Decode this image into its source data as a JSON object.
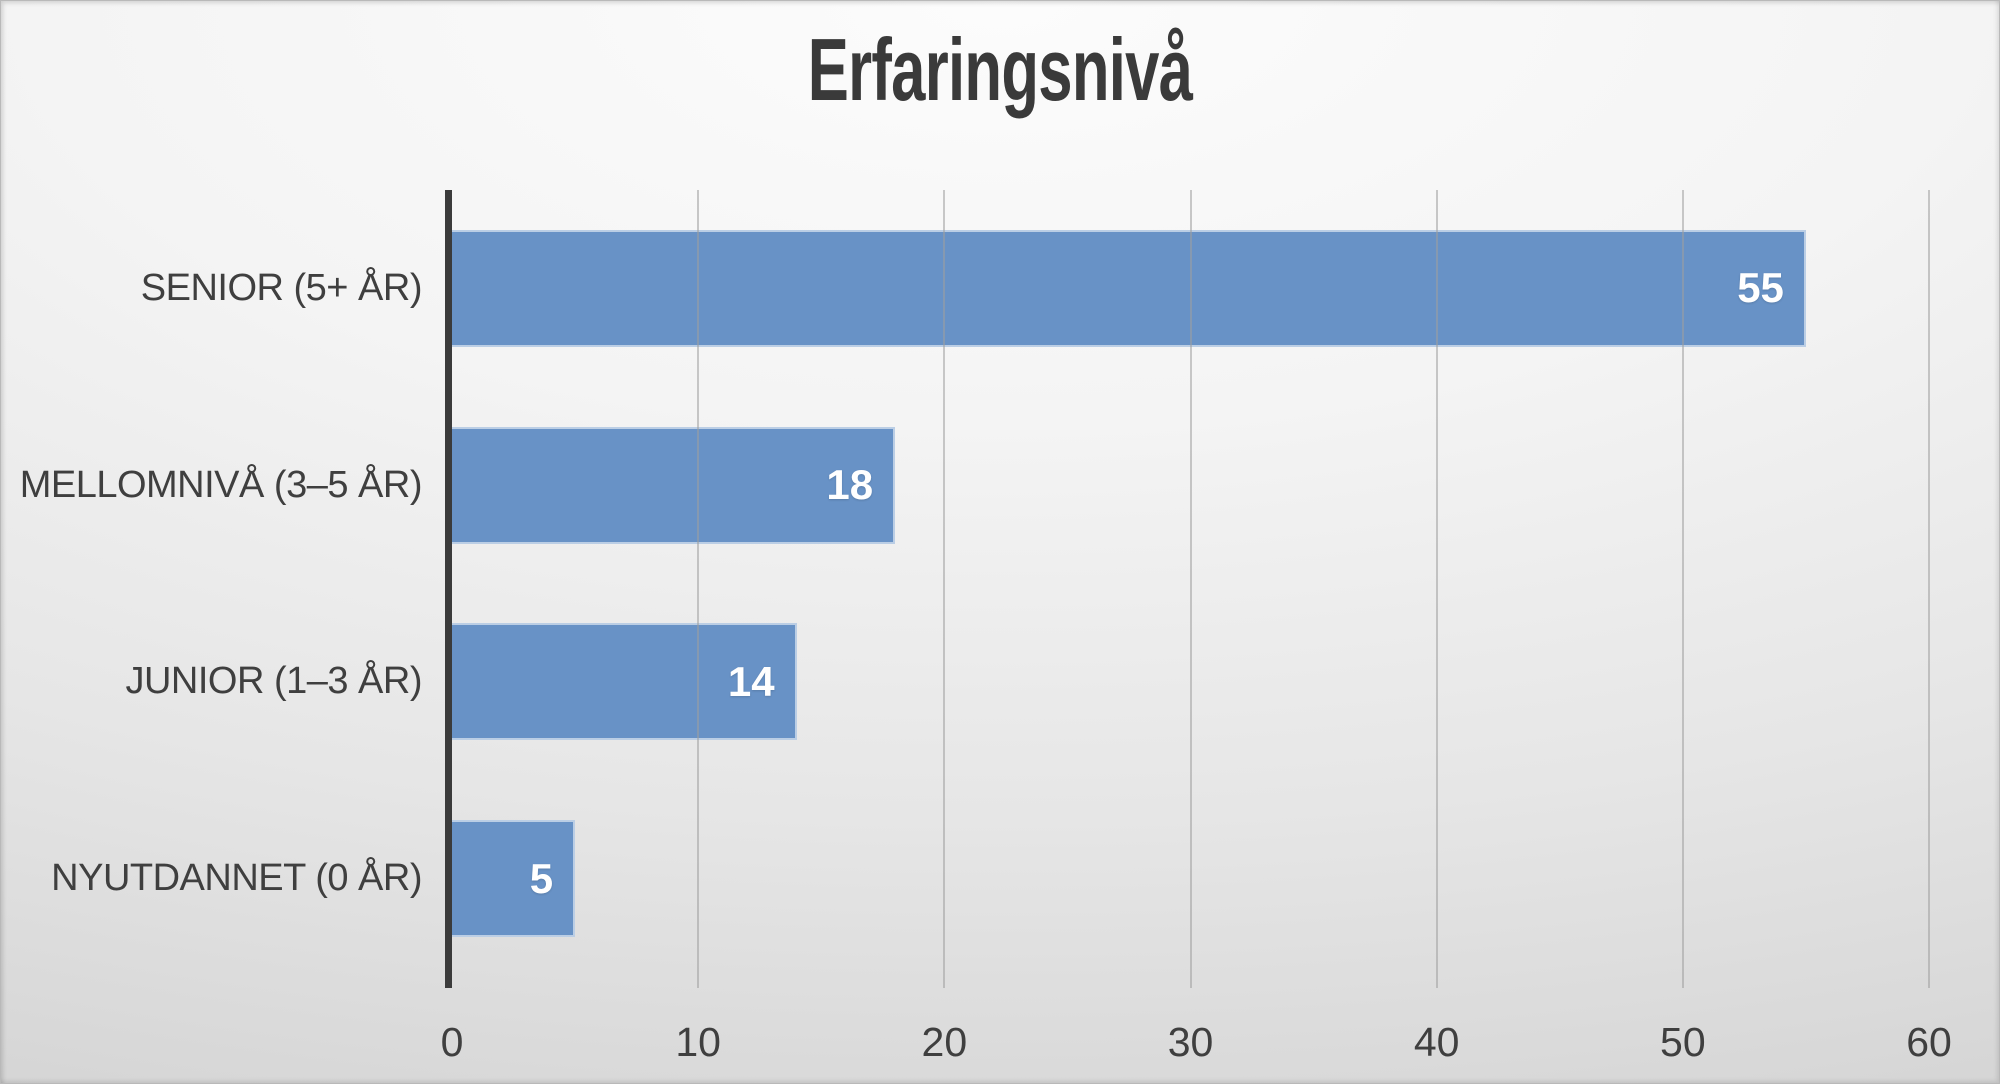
{
  "chart_data": {
    "type": "bar",
    "orientation": "horizontal",
    "title": "Erfaringsnivå",
    "categories": [
      "SENIOR (5+ ÅR)",
      "MELLOMNIVÅ (3–5 ÅR)",
      "JUNIOR (1–3 ÅR)",
      "NYUTDANNET (0 ÅR)"
    ],
    "values": [
      55,
      18,
      14,
      5
    ],
    "xlabel": "",
    "ylabel": "",
    "xlim": [
      0,
      60
    ],
    "x_ticks": [
      0,
      10,
      20,
      30,
      40,
      50,
      60
    ],
    "grid": true,
    "legend_position": "none",
    "value_label_position": "inside-end",
    "colors": {
      "bar": "#6892c6",
      "value_label": "#ffffff",
      "title_text": "#3a3a3a",
      "axis_text": "#3f3f3f",
      "axis_line": "#3b3b3b",
      "gridline": "#9f9f9f"
    }
  }
}
